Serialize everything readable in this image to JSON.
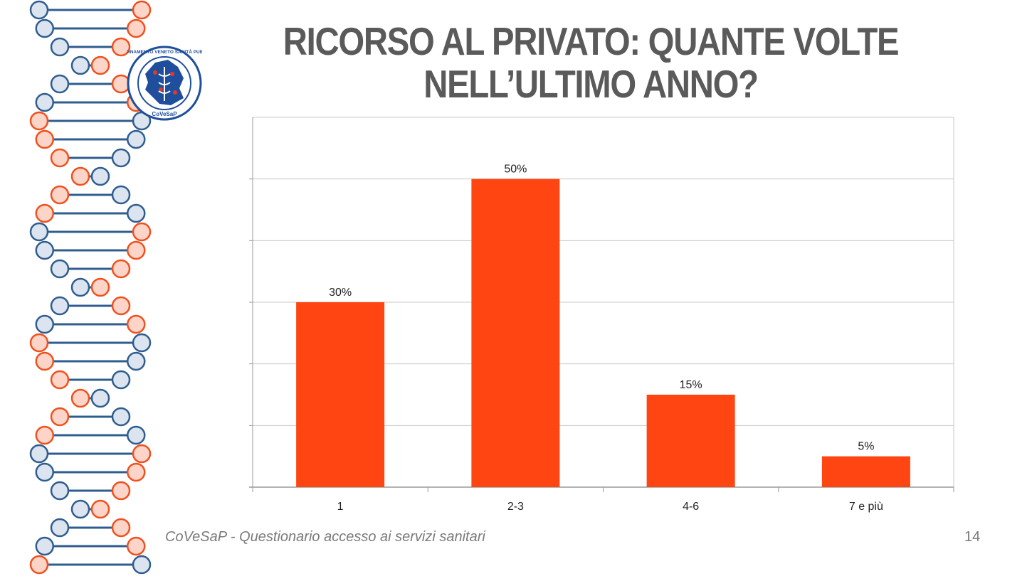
{
  "slide": {
    "title_line1": "RICORSO AL PRIVATO: QUANTE VOLTE",
    "title_line2": "NELL’ULTIMO ANNO?",
    "footer": "CoVeSaP - Questionario accesso ai servizi sanitari",
    "page_number": "14"
  },
  "logo": {
    "text": "COORDINAMENTO VENETO SANITÀ PUBBLICA",
    "abbr": "CoVeSaP",
    "colors": {
      "primary": "#1f4e9c",
      "accent": "#e03a2a"
    }
  },
  "decoration": {
    "icon": "dna-helix-icon",
    "colors": {
      "blue_stroke": "#2f5d8f",
      "blue_fill": "#dbe4ef",
      "orange_stroke": "#f0501e",
      "orange_fill": "#fdd5c8"
    }
  },
  "chart_data": {
    "type": "bar",
    "categories": [
      "1",
      "2-3",
      "4-6",
      "7 e più"
    ],
    "values": [
      30,
      50,
      15,
      5
    ],
    "data_labels": [
      "30%",
      "50%",
      "15%",
      "5%"
    ],
    "title": "",
    "xlabel": "",
    "ylabel": "",
    "ylim": [
      0,
      60
    ],
    "grid": true,
    "colors": {
      "bar": "#ff4512",
      "grid": "#c8c8c8",
      "axis": "#9a9a9a",
      "label": "#222222"
    }
  }
}
